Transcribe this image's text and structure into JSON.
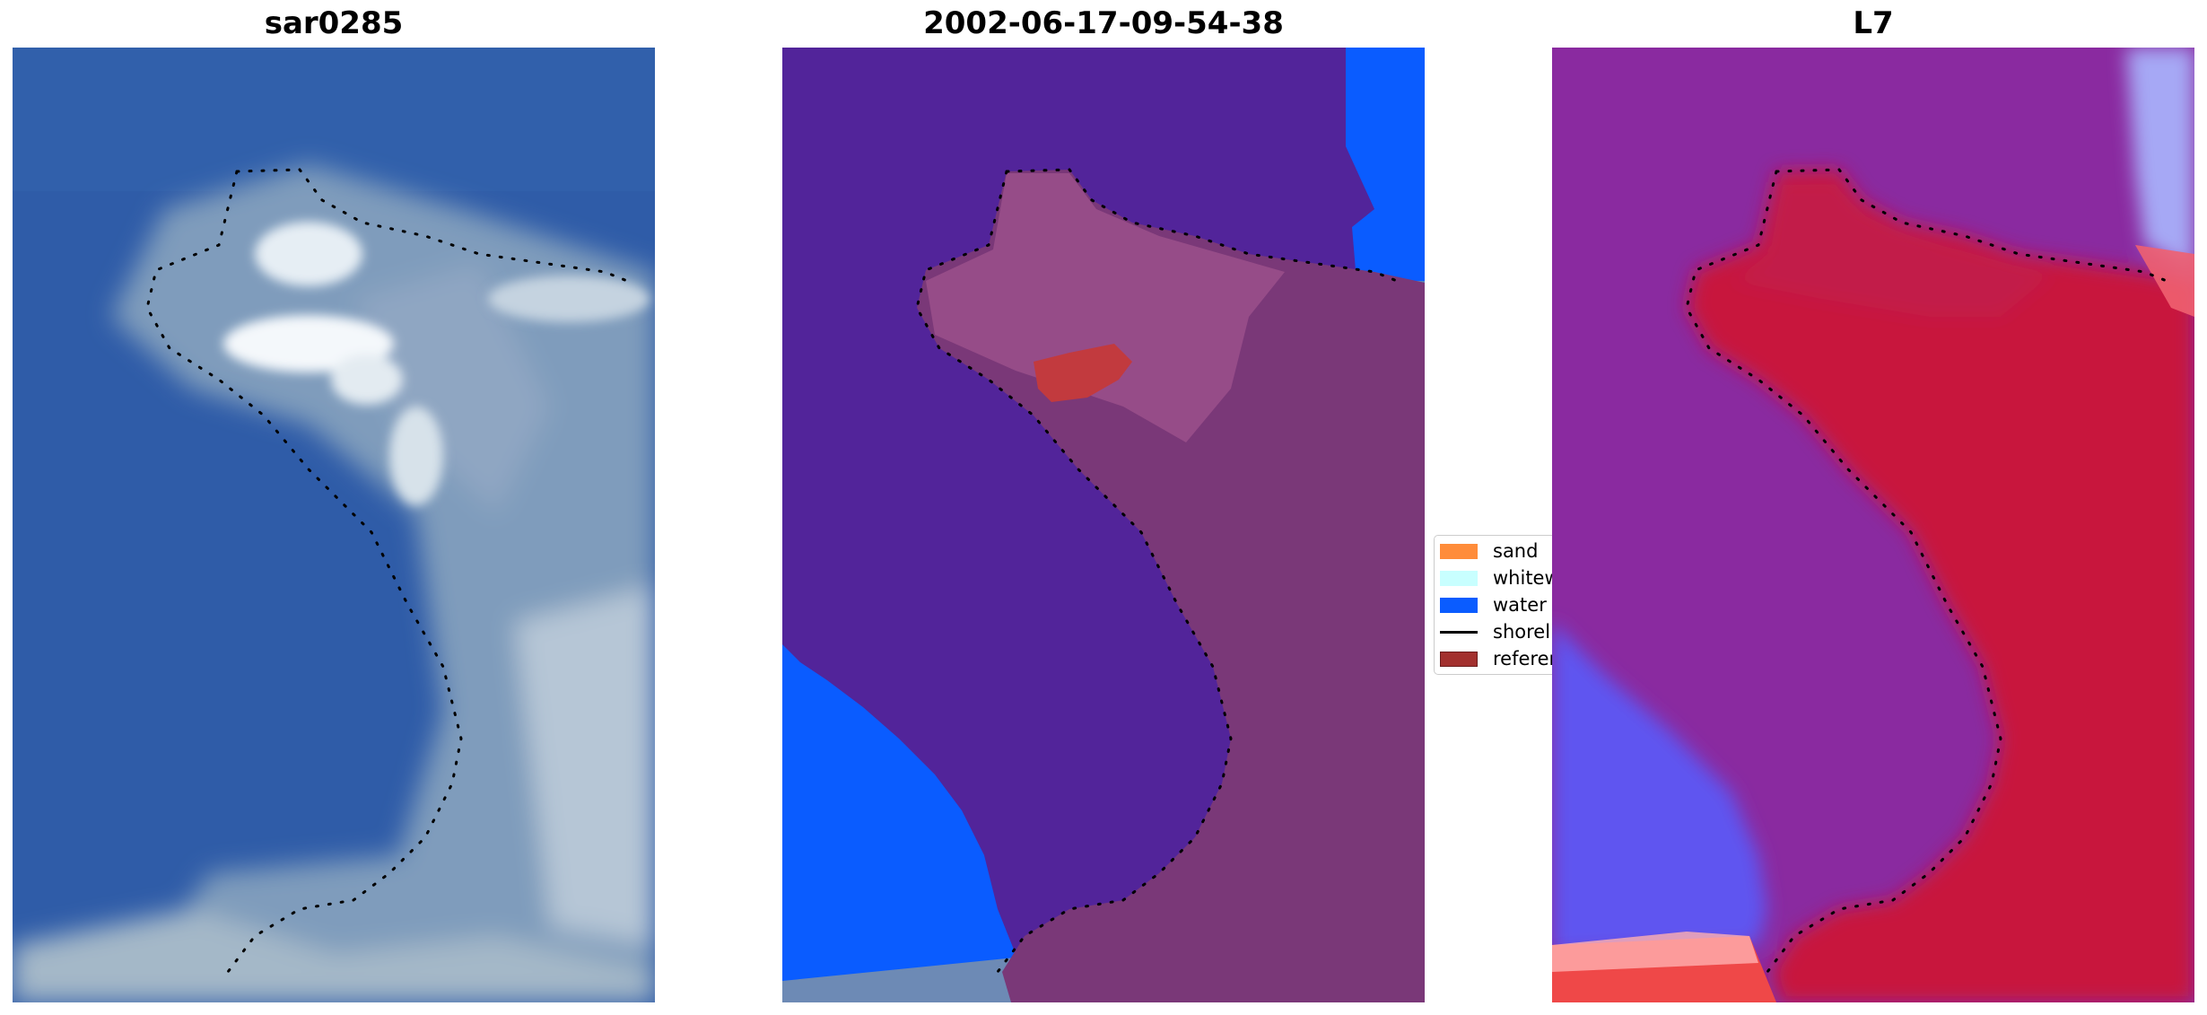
{
  "panels": [
    {
      "title": "sar0285",
      "kind": "rgb"
    },
    {
      "title": "2002-06-17-09-54-38",
      "kind": "classification"
    },
    {
      "title": "L7",
      "kind": "index"
    }
  ],
  "legend": {
    "items": [
      {
        "label": "sand",
        "color": "#ff8c3a",
        "type": "patch"
      },
      {
        "label": "whitewater",
        "color": "#c8ffff",
        "type": "patch"
      },
      {
        "label": "water",
        "color": "#0a5cff",
        "type": "patch"
      },
      {
        "label": "shoreline",
        "color": "#000000",
        "type": "line"
      },
      {
        "label": "reference",
        "color": "#a2302e",
        "type": "patch"
      }
    ]
  },
  "colors": {
    "ocean": "#2d5aa6",
    "foam": "#d8e4ee",
    "class_background": "#52249a",
    "class_water": "#0a5cff",
    "land_overlay": "#7a3878",
    "index_low": "#5252ff",
    "index_mid": "#8a2aa0",
    "index_high": "#c8143c"
  }
}
